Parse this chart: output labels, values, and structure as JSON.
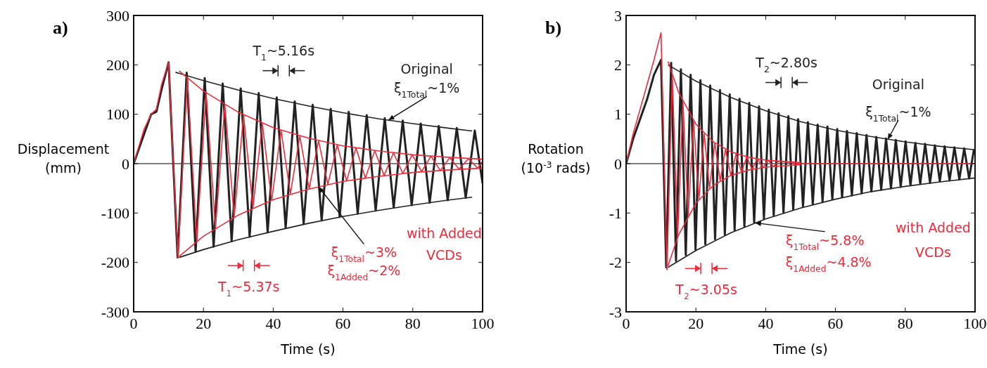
{
  "chart_data": [
    {
      "type": "line",
      "title": "a)",
      "xlabel": "Time (s)",
      "ylabel": "Displacement (mm)",
      "xlim": [
        0,
        100
      ],
      "ylim": [
        -300,
        300
      ],
      "xticks": [
        0,
        20,
        40,
        60,
        80,
        100
      ],
      "yticks": [
        -300,
        -200,
        -100,
        0,
        100,
        200,
        300
      ],
      "grid": false,
      "ref_lines": [
        {
          "axis": "y",
          "value": 0,
          "color": "#000000"
        }
      ],
      "series": [
        {
          "color": "#222222",
          "x": [
            0,
            3,
            5,
            6.5,
            8,
            10,
            12.6,
            15.2,
            17.76,
            20.36,
            22.92,
            25.52,
            28.08,
            30.68,
            33.24,
            35.84,
            38.4,
            41,
            43.56,
            46.16,
            48.72,
            51.32,
            53.88,
            56.48,
            59.04,
            61.64,
            64.2,
            66.8,
            69.36,
            71.96,
            74.52,
            77.12,
            79.68,
            82.28,
            84.84,
            87.44,
            90,
            92.6,
            95.16,
            97.76,
            100
          ],
          "values": [
            0,
            60,
            100,
            105,
            150,
            205,
            -190,
            184,
            -178,
            173,
            -168,
            162,
            -157,
            152,
            -148,
            143,
            -139,
            134,
            -130,
            126,
            -122,
            119,
            -115,
            111,
            -108,
            105,
            -101,
            98,
            -95,
            92,
            -89,
            87,
            -84,
            81,
            -79,
            76,
            -74,
            72,
            -69,
            67,
            -40
          ]
        },
        {
          "color": "#ee2b3b",
          "x": [
            0,
            3,
            5,
            6.5,
            8,
            10,
            12.7,
            15.39,
            18.07,
            20.76,
            23.44,
            26.13,
            28.81,
            31.5,
            34.18,
            36.87,
            39.55,
            42.24,
            44.92,
            47.61,
            50.29,
            52.98,
            55.66,
            58.35,
            61.03,
            63.72,
            66.4,
            69.09,
            71.77,
            74.46,
            77.14,
            79.83,
            82.51,
            85.2,
            87.88,
            90.57,
            93.25,
            95.94,
            98.62,
            100
          ],
          "values": [
            0,
            70,
            100,
            110,
            160,
            205,
            -190,
            173,
            -157,
            143,
            -130,
            119,
            -108,
            98,
            -89,
            81,
            -74,
            67,
            -61,
            56,
            -51,
            46,
            -42,
            38,
            -35,
            32,
            -29,
            26,
            -24,
            22,
            -20,
            18,
            -16,
            15,
            -14,
            12,
            -11,
            10,
            -9,
            5
          ]
        },
        {
          "color": "#222222",
          "x": [
            12,
            20,
            30,
            40,
            50,
            60,
            70,
            80,
            90,
            97
          ],
          "values": [
            185,
            168,
            149,
            132,
            117,
            103,
            91,
            81,
            72,
            66
          ]
        },
        {
          "color": "#222222",
          "x": [
            13,
            20,
            30,
            40,
            50,
            60,
            70,
            80,
            90,
            97
          ],
          "values": [
            -190,
            -174,
            -154,
            -137,
            -121,
            -107,
            -95,
            -84,
            -74,
            -68
          ]
        },
        {
          "color": "#ee2b3b",
          "x": [
            13,
            20,
            30,
            40,
            50,
            60,
            70,
            80,
            90,
            100
          ],
          "values": [
            188,
            147,
            104,
            73,
            52,
            36,
            26,
            18,
            13,
            9
          ]
        },
        {
          "color": "#ee2b3b",
          "x": [
            13,
            20,
            30,
            40,
            50,
            60,
            70,
            80,
            90,
            100
          ],
          "values": [
            -188,
            -147,
            -104,
            -73,
            -52,
            -36,
            -26,
            -18,
            -13,
            -9
          ]
        }
      ],
      "annotations": [
        "T$_{1}$~5.16s",
        "Original",
        {
          "text": "ξ$_{1Total}$~1%",
          "x": 73,
          "y": 88
        },
        "T$_{1}$~5.37s",
        {
          "text": "ξ$_{1Total}$~3%",
          "x": 53,
          "y": -47
        },
        "ξ$_{1Added}$~2%",
        "with Added",
        "VCDs"
      ]
    },
    {
      "type": "line",
      "title": "b)",
      "xlabel": "Time (s)",
      "ylabel": "Rotation (10$^{-3}$ rads)",
      "xlim": [
        0,
        100
      ],
      "ylim": [
        -3,
        3
      ],
      "xticks": [
        0,
        20,
        40,
        60,
        80,
        100
      ],
      "yticks": [
        -3,
        -2,
        -1,
        0,
        1,
        2,
        3
      ],
      "grid": false,
      "ref_lines": [
        {
          "axis": "y",
          "value": 0,
          "color": "#000000"
        }
      ],
      "series": [
        {
          "color": "#222222",
          "x": [
            0,
            2,
            4,
            6,
            8,
            10,
            11.5,
            12.9,
            14.3,
            15.7,
            17.1,
            18.5,
            19.9,
            21.3,
            22.7,
            24.1,
            25.5,
            26.9,
            28.3,
            29.7,
            31.1,
            32.5,
            33.9,
            35.3,
            36.7,
            38.1,
            39.5,
            40.9,
            42.3,
            43.7,
            45.1,
            46.5,
            47.9,
            49.3,
            50.7,
            52.1,
            53.5,
            54.9,
            56.3,
            57.7,
            59.1,
            60.5,
            61.9,
            63.3,
            64.7,
            66.1,
            67.5,
            68.9,
            70.3,
            71.7,
            73.1,
            74.5,
            75.9,
            77.3,
            78.7,
            80.1,
            81.5,
            82.9,
            84.3,
            85.7,
            87.1,
            88.5,
            89.9,
            91.3,
            92.7,
            94.1,
            95.5,
            96.9,
            98.3,
            99.7
          ],
          "values": [
            0,
            0.5,
            0.9,
            1.3,
            1.8,
            2.1,
            -2.1,
            2.04,
            -1.97,
            1.91,
            -1.85,
            1.8,
            -1.74,
            1.69,
            -1.63,
            1.58,
            -1.53,
            1.49,
            -1.44,
            1.4,
            -1.35,
            1.31,
            -1.27,
            1.23,
            -1.19,
            1.16,
            -1.12,
            1.09,
            -1.05,
            1.02,
            -0.99,
            0.96,
            -0.93,
            0.9,
            -0.87,
            0.84,
            -0.82,
            0.79,
            -0.77,
            0.75,
            -0.72,
            0.7,
            -0.68,
            0.66,
            -0.64,
            0.62,
            -0.6,
            0.58,
            -0.56,
            0.54,
            -0.53,
            0.51,
            -0.5,
            0.48,
            -0.47,
            0.45,
            -0.44,
            0.42,
            -0.41,
            0.4,
            -0.39,
            0.37,
            -0.36,
            0.35,
            -0.34,
            0.33,
            -0.32,
            0.31,
            -0.3,
            0.29
          ]
        },
        {
          "color": "#ee2b3b",
          "x": [
            0,
            2,
            4,
            6,
            8,
            10,
            11.7,
            13.23,
            14.75,
            16.28,
            17.8,
            19.33,
            20.85,
            22.38,
            23.9,
            25.43,
            26.95,
            28.48,
            30,
            31.53,
            33.05,
            34.58,
            36.1,
            37.63,
            39.15,
            40.68,
            42.2,
            43.73,
            50,
            100
          ],
          "values": [
            0,
            0.6,
            1.1,
            1.6,
            2.1,
            2.65,
            -2.15,
            1.79,
            -1.49,
            1.24,
            -1.04,
            0.86,
            -0.72,
            0.6,
            -0.5,
            0.42,
            -0.35,
            0.29,
            -0.24,
            0.2,
            -0.17,
            0.14,
            -0.12,
            0.1,
            -0.08,
            0.07,
            -0.06,
            0.05,
            0,
            0
          ]
        },
        {
          "color": "#222222",
          "x": [
            12,
            20,
            30,
            40,
            50,
            60,
            70,
            80,
            90,
            100
          ],
          "values": [
            2,
            1.67,
            1.34,
            1.07,
            0.85,
            0.68,
            0.55,
            0.44,
            0.35,
            0.28
          ]
        },
        {
          "color": "#222222",
          "x": [
            12,
            20,
            30,
            40,
            50,
            60,
            70,
            80,
            90,
            100
          ],
          "values": [
            -2.1,
            -1.76,
            -1.4,
            -1.12,
            -0.9,
            -0.72,
            -0.57,
            -0.46,
            -0.37,
            -0.29
          ]
        },
        {
          "color": "#ee2b3b",
          "x": [
            12,
            15,
            20,
            25,
            30,
            35,
            40,
            50
          ],
          "values": [
            2.07,
            1.45,
            0.8,
            0.44,
            0.24,
            0.13,
            0.07,
            0.02
          ]
        },
        {
          "color": "#ee2b3b",
          "x": [
            12,
            15,
            20,
            25,
            30,
            35,
            40,
            50
          ],
          "values": [
            -2.07,
            -1.45,
            -0.8,
            -0.44,
            -0.24,
            -0.13,
            -0.07,
            -0.02
          ]
        }
      ],
      "annotations": [
        "T$_{2}$~2.80s",
        "Original",
        {
          "text": "ξ$_{1Total}$~1%",
          "x": 75,
          "y": 0.49
        },
        "T$_{2}$~3.05s",
        {
          "text": "ξ$_{1Total}$~5.8%",
          "x": 37,
          "y": -1.2
        },
        "ξ$_{1Added}$~4.8%",
        "with Added",
        "VCDs"
      ]
    }
  ]
}
